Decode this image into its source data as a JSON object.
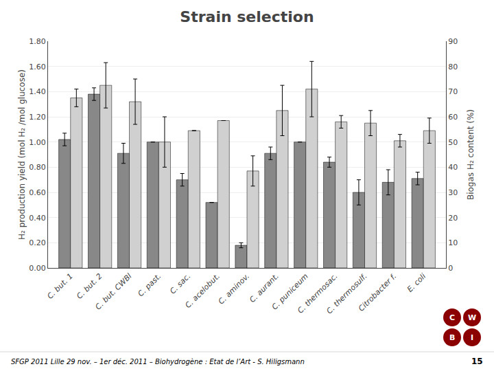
{
  "chart_data": {
    "type": "bar",
    "title": "Strain selection",
    "ylabel": "H₂ production yield (mol H₂ /mol glucose)",
    "y2label": "Biogas H₂ content (%)",
    "categories": [
      "C. but. 1",
      "C. but. 2",
      "C. but. CWBl",
      "C. past.",
      "C. sac.",
      "C. acelobut.",
      "C. aminov.",
      "C. aurant.",
      "C. puniceum",
      "C. thermosac.",
      "C. thermosulf.",
      "Citrobacter f.",
      "E. coli"
    ],
    "series": [
      {
        "color": "#888888",
        "values": [
          1.02,
          1.38,
          0.91,
          1.0,
          0.7,
          0.52,
          0.18,
          0.91,
          1.0,
          0.84,
          0.6,
          0.68,
          0.71
        ],
        "errors": [
          0.05,
          0.05,
          0.08,
          0.0,
          0.05,
          0.0,
          0.02,
          0.05,
          0.0,
          0.04,
          0.1,
          0.1,
          0.05
        ]
      },
      {
        "color": "#d0d0d0",
        "values": [
          1.35,
          1.45,
          1.32,
          1.0,
          1.09,
          1.17,
          0.77,
          1.25,
          1.42,
          1.16,
          1.15,
          1.01,
          1.09
        ],
        "errors": [
          0.07,
          0.18,
          0.18,
          0.2,
          0.0,
          0.0,
          0.12,
          0.2,
          0.22,
          0.05,
          0.1,
          0.05,
          0.1
        ]
      }
    ],
    "ylim": [
      0,
      1.8
    ],
    "yticks": [
      {
        "value": 0.0,
        "label": "0.00"
      },
      {
        "value": 0.2,
        "label": "0.20"
      },
      {
        "value": 0.4,
        "label": "0.40"
      },
      {
        "value": 0.6,
        "label": "0.60"
      },
      {
        "value": 0.8,
        "label": "0.80"
      },
      {
        "value": 1.0,
        "label": "1.00"
      },
      {
        "value": 1.2,
        "label": "1.20"
      },
      {
        "value": 1.4,
        "label": "1.40"
      },
      {
        "value": 1.6,
        "label": "1.60"
      },
      {
        "value": 1.8,
        "label": "1.80"
      }
    ],
    "y2lim": [
      0,
      90
    ],
    "y2ticks": [
      0,
      10,
      20,
      30,
      40,
      50,
      60,
      70,
      80,
      90
    ],
    "grid": true,
    "annotations": [
      "SFGP 2011 Lille 29 nov. – 1er déc. 2011 – Biohydrogène : Etat de l’Art - S. Hiligsmann",
      "15",
      "C",
      "W",
      "B",
      "I"
    ]
  }
}
